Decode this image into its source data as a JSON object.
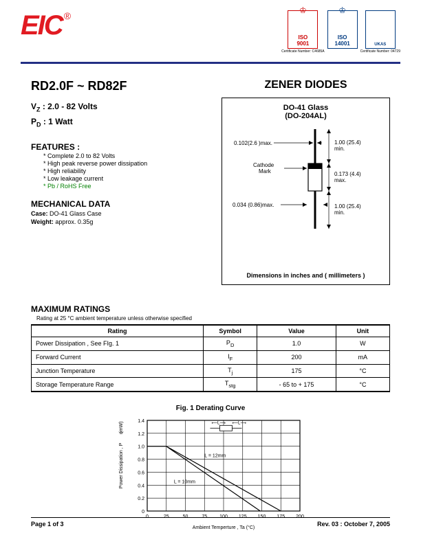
{
  "header": {
    "logo_text": "EIC",
    "certs": [
      {
        "label": "ISO",
        "num": "9001",
        "caption": "Certificate Number: C4685A",
        "style": "red"
      },
      {
        "label": "ISO",
        "num": "14001",
        "caption": "",
        "style": "blue"
      },
      {
        "label": "UKAS",
        "num": "",
        "caption": "Certificate Number: 04729",
        "style": "blue"
      }
    ]
  },
  "title": {
    "part": "RD2.0F ~ RD82F",
    "zener": "ZENER DIODES"
  },
  "specs": {
    "vz_label": "V",
    "vz_sub": "Z",
    "vz_val": " : 2.0 - 82 Volts",
    "pd_label": "P",
    "pd_sub": "D",
    "pd_val": " : 1 Watt"
  },
  "features": {
    "hdr": "FEATURES :",
    "items": [
      "Complete 2.0  to 82 Volts",
      "High peak reverse power dissipation",
      "High reliability",
      "Low leakage current",
      "Pb / RoHS Free"
    ]
  },
  "mech": {
    "hdr": "MECHANICAL DATA",
    "case_lbl": "Case:",
    "case_val": " DO-41 Glass Case",
    "weight_lbl": "Weight:",
    "weight_val": " approx. 0.35g"
  },
  "package": {
    "title": "DO-41 Glass",
    "sub": "(DO-204AL)",
    "dim_note": "Dimensions in inches and ( millimeters )",
    "dims": {
      "lead_dia": "0.102(2.6 )max.",
      "lead_len1": "1.00 (25.4) min.",
      "body_len": "0.173 (4.4) max.",
      "body_dia": "0.034 (0.86)max.",
      "lead_len2": "1.00 (25.4) min.",
      "cathode": "Cathode Mark"
    }
  },
  "ratings": {
    "hdr": "MAXIMUM RATINGS",
    "sub": "Rating at 25 °C ambient temperature unless otherwise specified",
    "columns": [
      "Rating",
      "Symbol",
      "Value",
      "Unit"
    ],
    "rows": [
      [
        "Power Dissipation , See FIg. 1",
        "P_D",
        "1.0",
        "W"
      ],
      [
        "Forward Current",
        "I_F",
        "200",
        "mA"
      ],
      [
        "Junction Temperature",
        "T_j",
        "175",
        "°C"
      ],
      [
        "Storage Temperature Range",
        "T_stg",
        "- 65 to + 175",
        "°C"
      ]
    ]
  },
  "chart": {
    "title": "Fig. 1  Derating Curve",
    "xlabel": "Ambient Temperture , Ta (°C)",
    "ylabel": "Power Dissipation , P_D (mW)",
    "xlim": [
      0,
      200
    ],
    "xtick_step": 25,
    "ylim": [
      0,
      1.4
    ],
    "ytick_step": 0.2,
    "yticks": [
      "0",
      "0.2",
      "0.4",
      "0.6",
      "0.8",
      "1.0",
      "1.2",
      "1.4"
    ],
    "xticks": [
      "0",
      "25",
      "50",
      "75",
      "100",
      "125",
      "150",
      "175",
      "200"
    ],
    "grid_color": "#000000",
    "background_color": "#ffffff",
    "series": [
      {
        "label": "L = 10mm",
        "points": [
          [
            25,
            1.0
          ],
          [
            148,
            0
          ]
        ],
        "color": "#000000",
        "width": 1.2
      },
      {
        "label": "L = 12mm",
        "points": [
          [
            25,
            1.0
          ],
          [
            175,
            0
          ]
        ],
        "color": "#000000",
        "width": 1.2
      }
    ],
    "inset_diagram": true
  },
  "footer": {
    "page": "Page 1 of 3",
    "rev": "Rev. 03 : October 7, 2005"
  }
}
